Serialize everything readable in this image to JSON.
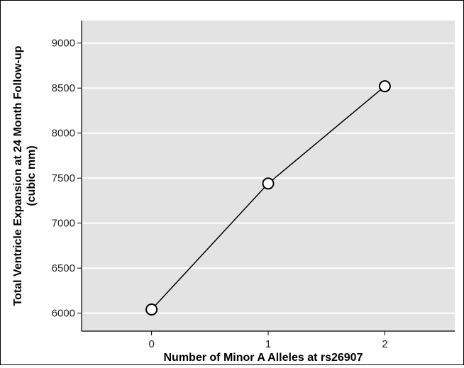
{
  "chart_data": {
    "type": "line",
    "title": "",
    "xlabel": "Number of Minor A Alleles at rs26907",
    "ylabel_line1": "Total Ventricle Expansion at 24 Month Follow-up",
    "ylabel_line2": "(cubic mm)",
    "categories": [
      "0",
      "1",
      "2"
    ],
    "x": [
      0,
      1,
      2
    ],
    "xlim": [
      -0.6,
      2.6
    ],
    "series": [
      {
        "values": [
          6040,
          7440,
          8520
        ]
      }
    ],
    "ylim": [
      5800,
      9250
    ],
    "yticks": [
      6000,
      6500,
      7000,
      7500,
      8000,
      8500,
      9000
    ],
    "ytick_labels": [
      "6000",
      "6500",
      "7000",
      "7500",
      "8000",
      "8500",
      "9000"
    ],
    "grid": true,
    "legend": "none",
    "colors": {
      "panel_bg": "#e3e3e3",
      "grid": "#ffffff",
      "line": "#000000",
      "marker_fill": "#ffffff"
    }
  }
}
